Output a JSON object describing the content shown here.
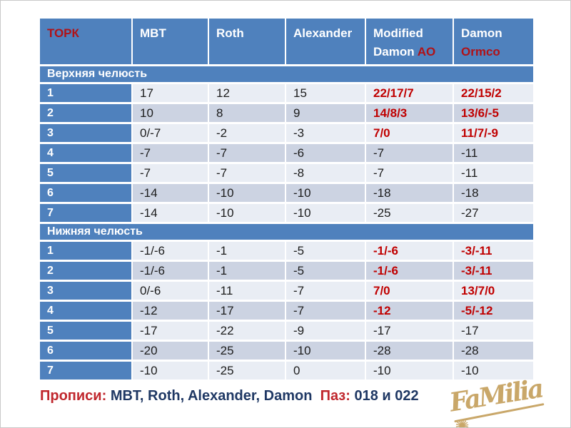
{
  "table": {
    "header": {
      "columns": [
        {
          "segments": [
            {
              "text": "ТОРК",
              "red": true
            }
          ]
        },
        {
          "segments": [
            {
              "text": "MBT",
              "red": false
            }
          ]
        },
        {
          "segments": [
            {
              "text": "Roth",
              "red": false
            }
          ]
        },
        {
          "segments": [
            {
              "text": "Alexander",
              "red": false
            }
          ]
        },
        {
          "segments": [
            {
              "text": "Modified Damon ",
              "red": false
            },
            {
              "text": "AO",
              "red": true
            }
          ]
        },
        {
          "segments": [
            {
              "text": "Damon ",
              "red": false
            },
            {
              "text": "Ormco",
              "red": true
            }
          ]
        }
      ]
    },
    "sections": [
      {
        "title": "Верхняя челюсть",
        "rows": [
          {
            "label": "1",
            "values": [
              "17",
              "12",
              "15",
              "22/17/7",
              "22/15/2"
            ],
            "red_value_indices": [
              3,
              4
            ]
          },
          {
            "label": "2",
            "values": [
              "10",
              "8",
              "9",
              "14/8/3",
              "13/6/-5"
            ],
            "red_value_indices": [
              3,
              4
            ]
          },
          {
            "label": "3",
            "values": [
              "0/-7",
              "-2",
              "-3",
              "7/0",
              "11/7/-9"
            ],
            "red_value_indices": [
              3,
              4
            ]
          },
          {
            "label": "4",
            "values": [
              "-7",
              "-7",
              "-6",
              "-7",
              "-11"
            ],
            "red_value_indices": []
          },
          {
            "label": "5",
            "values": [
              "-7",
              "-7",
              "-8",
              "-7",
              "-11"
            ],
            "red_value_indices": []
          },
          {
            "label": "6",
            "values": [
              "-14",
              "-10",
              "-10",
              "-18",
              "-18"
            ],
            "red_value_indices": []
          },
          {
            "label": "7",
            "values": [
              "-14",
              "-10",
              "-10",
              "-25",
              "-27"
            ],
            "red_value_indices": []
          }
        ]
      },
      {
        "title": "Нижняя челюсть",
        "rows": [
          {
            "label": "1",
            "values": [
              "-1/-6",
              "-1",
              "-5",
              "-1/-6",
              "-3/-11"
            ],
            "red_value_indices": [
              3,
              4
            ]
          },
          {
            "label": "2",
            "values": [
              "-1/-6",
              "-1",
              "-5",
              "-1/-6",
              "-3/-11"
            ],
            "red_value_indices": [
              3,
              4
            ]
          },
          {
            "label": "3",
            "values": [
              "0/-6",
              "-11",
              "-7",
              "7/0",
              "13/7/0"
            ],
            "red_value_indices": [
              3,
              4
            ]
          },
          {
            "label": "4",
            "values": [
              "-12",
              "-17",
              "-7",
              "-12",
              "-5/-12"
            ],
            "red_value_indices": [
              3,
              4
            ]
          },
          {
            "label": "5",
            "values": [
              "-17",
              "-22",
              "-9",
              "-17",
              "-17"
            ],
            "red_value_indices": []
          },
          {
            "label": "6",
            "values": [
              "-20",
              "-25",
              "-10",
              "-28",
              "-28"
            ],
            "red_value_indices": []
          },
          {
            "label": "7",
            "values": [
              "-10",
              "-25",
              "0",
              "-10",
              "-10"
            ],
            "red_value_indices": []
          }
        ]
      }
    ]
  },
  "footer": {
    "label1": "Прописи:",
    "value1": " MBT, Roth, Alexander, Damon  ",
    "label2": "Паз:",
    "value2": " 018 и 022"
  },
  "logo": {
    "text": "FaMilia",
    "star": "✺"
  },
  "colors": {
    "header_blue": "#4f81bd",
    "row_light": "#e9edf4",
    "row_dark": "#ccd3e2",
    "table_red": "#c00000",
    "header_red": "#b01217",
    "footer_red": "#c0272d",
    "footer_navy": "#1f3864",
    "logo_gold": "#c9a769"
  }
}
